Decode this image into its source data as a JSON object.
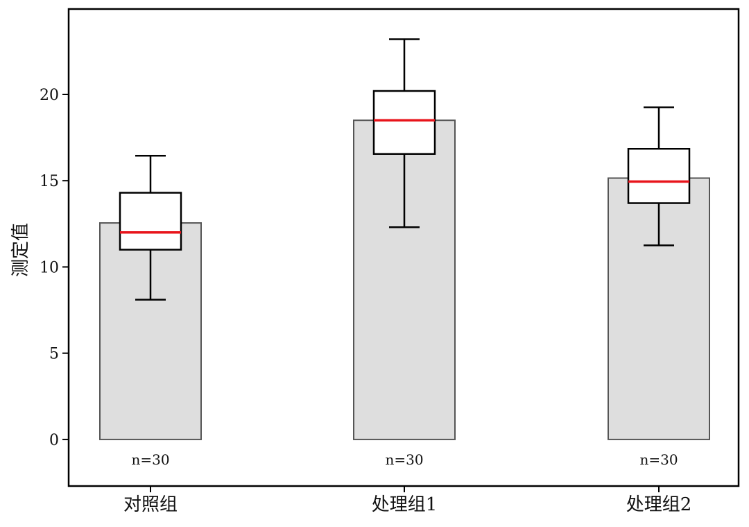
{
  "chart_data": {
    "type": "bar",
    "overlay": "boxplot",
    "categories": [
      "对照组",
      "处理组1",
      "处理组2"
    ],
    "values": [
      12.55,
      18.5,
      15.15
    ],
    "box": [
      {
        "whisker_low": 8.1,
        "q1": 11.0,
        "median": 12.0,
        "q3": 14.3,
        "whisker_high": 16.45
      },
      {
        "whisker_low": 12.3,
        "q1": 16.55,
        "median": 18.5,
        "q3": 20.2,
        "whisker_high": 23.2
      },
      {
        "whisker_low": 11.25,
        "q1": 13.7,
        "median": 14.95,
        "q3": 16.85,
        "whisker_high": 19.25
      }
    ],
    "n_labels": [
      "n=30",
      "n=30",
      "n=30"
    ],
    "ylabel": "测定值",
    "xlabel": "",
    "title": "",
    "ylim": [
      -2.7,
      24.95
    ],
    "yticks": [
      0,
      5,
      10,
      15,
      20
    ],
    "grid": false,
    "colors": {
      "bar_fill": "#dedede",
      "bar_edge": "#555555",
      "median": "#e8141b",
      "box_edge": "#000000",
      "axis": "#000000"
    }
  }
}
